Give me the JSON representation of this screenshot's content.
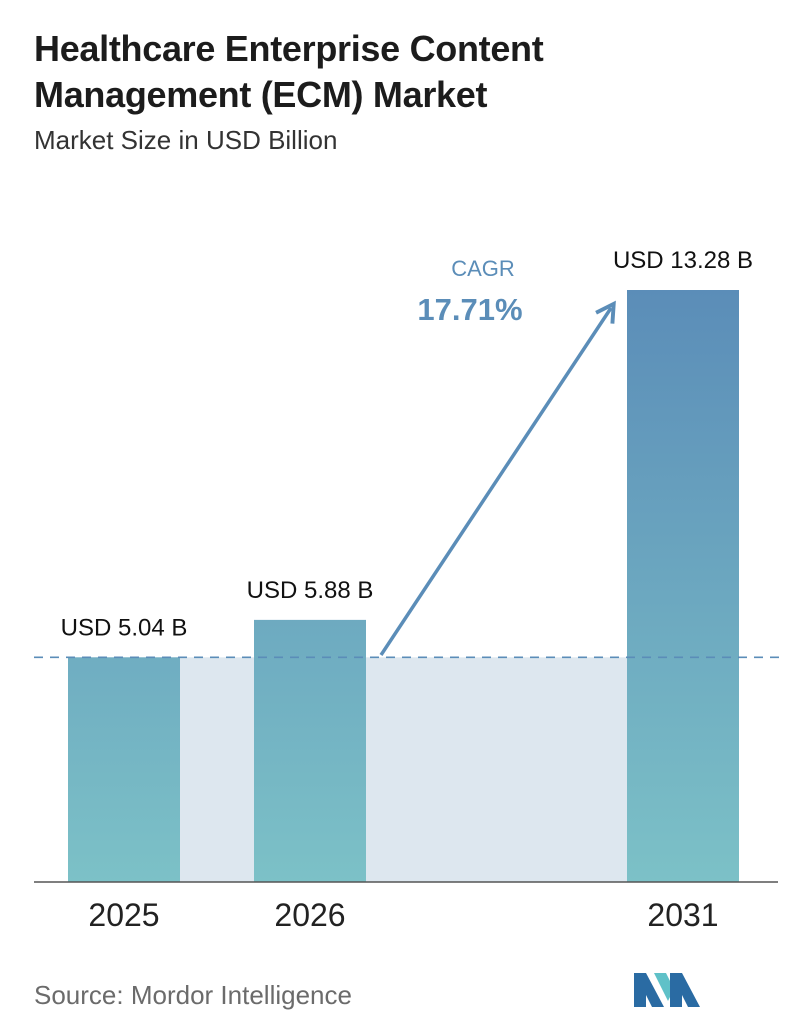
{
  "header": {
    "title_line1": "Healthcare Enterprise Content",
    "title_line2": "Management (ECM) Market",
    "subtitle": "Market Size in USD Billion"
  },
  "chart_data": {
    "type": "bar",
    "title": "Healthcare Enterprise Content Management (ECM) Market",
    "subtitle": "Market Size in USD Billion",
    "categories": [
      "2025",
      "2026",
      "2031"
    ],
    "values": [
      5.04,
      5.88,
      13.28
    ],
    "value_labels": [
      "USD 5.04 B",
      "USD 5.88 B",
      "USD 13.28 B"
    ],
    "unit": "USD Billion",
    "ylim": [
      0,
      13.28
    ],
    "grid": false,
    "legend": "none",
    "reference_line": {
      "value": 5.04,
      "style": "dashed"
    },
    "cagr": {
      "label": "CAGR",
      "value": "17.71%"
    },
    "colors": {
      "bar_top": "#5b8db8",
      "bar_bottom": "#7cc1c7",
      "band": "#dde7ef",
      "arrow": "#5b8db8",
      "cagr_text": "#5b8db8",
      "dashed_line": "#5b8db8",
      "baseline": "#555555"
    }
  },
  "footer": {
    "source_label": "Source:",
    "source_value": "Mordor Intelligence"
  },
  "logo": {
    "icon": "mordor-intelligence-logo-icon",
    "colors": [
      "#2a6ba3",
      "#5fc1c8"
    ]
  }
}
